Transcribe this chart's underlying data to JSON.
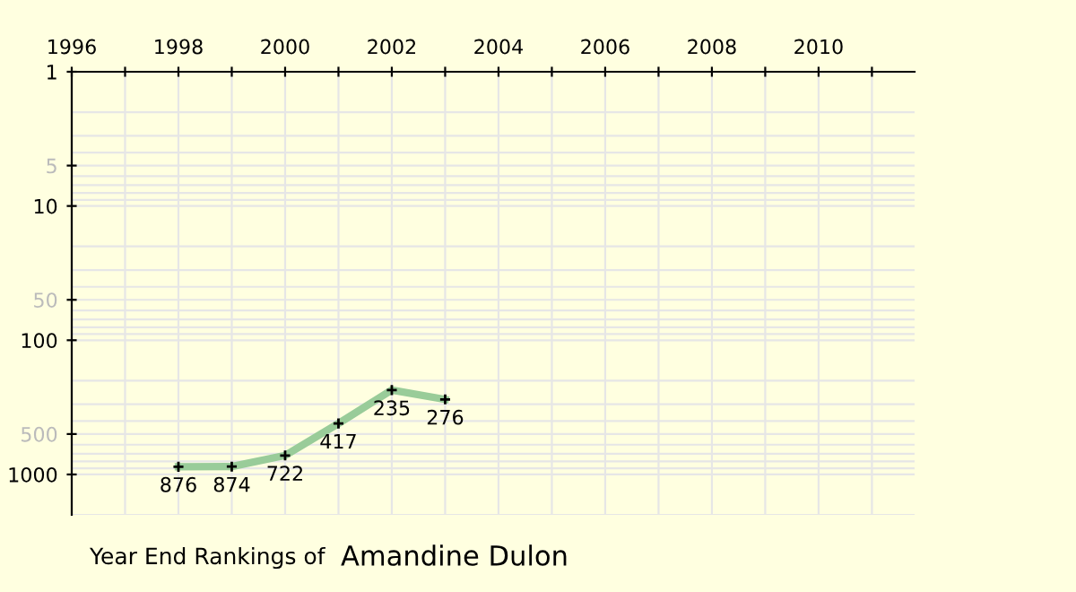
{
  "chart_data": {
    "type": "line",
    "title": "Year End Rankings of",
    "subtitle": "Amandine Dulon",
    "x": [
      1998,
      1999,
      2000,
      2001,
      2002,
      2003
    ],
    "series": [
      {
        "color": "#99cc99",
        "values": [
          876,
          874,
          722,
          417,
          235,
          276
        ]
      }
    ],
    "data_labels": true,
    "marker": "cross",
    "log": "y",
    "grid": true,
    "xlim": [
      1996,
      2011.8
    ],
    "xticks": [
      1996,
      {
        "value": 1997,
        "label": null
      },
      1998,
      {
        "value": 1999,
        "label": null
      },
      2000,
      {
        "value": 2001,
        "label": null
      },
      2002,
      {
        "value": 2003,
        "label": null
      },
      2004,
      {
        "value": 2005,
        "label": null
      },
      2006,
      {
        "value": 2007,
        "label": null
      },
      2008,
      {
        "value": 2009,
        "label": null
      },
      2010,
      {
        "value": 2011,
        "label": null
      }
    ],
    "ylim": [
      2000,
      1
    ],
    "yticks": [
      1,
      5,
      10,
      50,
      100,
      500,
      1000
    ]
  }
}
